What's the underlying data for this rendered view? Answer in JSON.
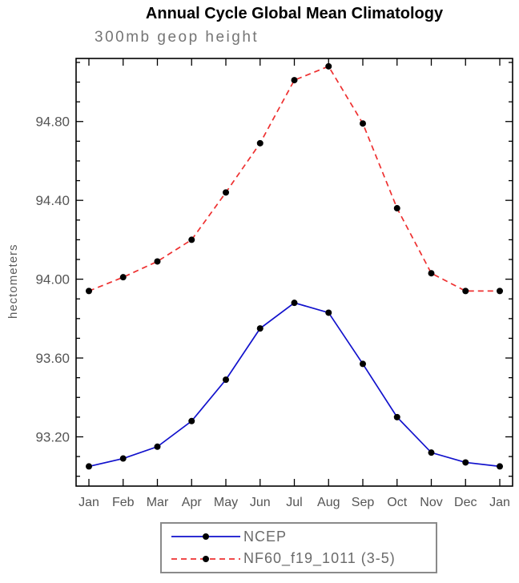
{
  "colors": {
    "marker": "#000000",
    "axis_text": "#555555",
    "frame": "#000000",
    "legend_border": "#8a8a8a",
    "ncep_line": "#1111cc",
    "model_line": "#ee3030"
  },
  "chart_data": {
    "type": "line",
    "title": "Annual Cycle Global Mean Climatology",
    "subtitle": "300mb geop height",
    "ylabel": "hectometers",
    "xlabel": "",
    "x_ticklabels": [
      "Jan",
      "Feb",
      "Mar",
      "Apr",
      "May",
      "Jun",
      "Jul",
      "Aug",
      "Sep",
      "Oct",
      "Nov",
      "Dec",
      "Jan"
    ],
    "y_ticks": [
      93.2,
      93.6,
      94.0,
      94.4,
      94.8
    ],
    "ylim": [
      92.95,
      95.12
    ],
    "grid": false,
    "legend_position": "bottom",
    "series": [
      {
        "name": "NCEP",
        "color": "#1111cc",
        "style": "solid",
        "marker": "filled-circle",
        "values": [
          93.05,
          93.09,
          93.15,
          93.28,
          93.49,
          93.75,
          93.88,
          93.83,
          93.57,
          93.3,
          93.12,
          93.07,
          93.05
        ]
      },
      {
        "name": "NF60_f19_1011 (3-5)",
        "color": "#ee3030",
        "style": "dashed",
        "marker": "filled-circle",
        "values": [
          93.94,
          94.01,
          94.09,
          94.2,
          94.44,
          94.69,
          95.01,
          95.08,
          94.79,
          94.36,
          94.03,
          93.94,
          93.94
        ]
      }
    ]
  }
}
